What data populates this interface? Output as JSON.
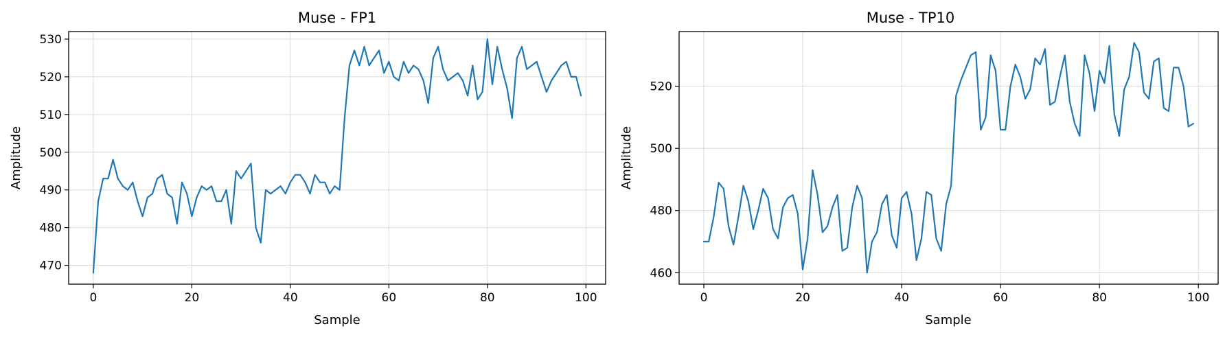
{
  "colors": {
    "series": "#1f77b4",
    "grid": "#d9d9d9",
    "background": "#ffffff"
  },
  "chart_data": [
    {
      "type": "line",
      "title": "Muse - FP1",
      "xlabel": "Sample",
      "ylabel": "Amplitude",
      "xlim": [
        -5,
        104
      ],
      "ylim": [
        465,
        532
      ],
      "xticks": [
        0,
        20,
        40,
        60,
        80,
        100
      ],
      "yticks": [
        470,
        480,
        490,
        500,
        510,
        520,
        530
      ],
      "grid": true,
      "series": [
        {
          "x": [
            0,
            1,
            2,
            3,
            4,
            5,
            6,
            7,
            8,
            9,
            10,
            11,
            12,
            13,
            14,
            15,
            16,
            17,
            18,
            19,
            20,
            21,
            22,
            23,
            24,
            25,
            26,
            27,
            28,
            29,
            30,
            31,
            32,
            33,
            34,
            35,
            36,
            37,
            38,
            39,
            40,
            41,
            42,
            43,
            44,
            45,
            46,
            47,
            48,
            49,
            50,
            51,
            52,
            53,
            54,
            55,
            56,
            57,
            58,
            59,
            60,
            61,
            62,
            63,
            64,
            65,
            66,
            67,
            68,
            69,
            70,
            71,
            72,
            73,
            74,
            75,
            76,
            77,
            78,
            79,
            80,
            81,
            82,
            83,
            84,
            85,
            86,
            87,
            88,
            89,
            90,
            91,
            92,
            93,
            94,
            95,
            96,
            97,
            98,
            99
          ],
          "values": [
            468,
            487,
            493,
            493,
            498,
            493,
            491,
            490,
            492,
            487,
            483,
            488,
            489,
            493,
            494,
            489,
            488,
            481,
            492,
            489,
            483,
            488,
            491,
            490,
            491,
            487,
            487,
            490,
            481,
            495,
            493,
            495,
            497,
            480,
            476,
            490,
            489,
            490,
            491,
            489,
            492,
            494,
            494,
            492,
            489,
            494,
            492,
            492,
            489,
            491,
            490,
            509,
            523,
            527,
            523,
            528,
            523,
            525,
            527,
            521,
            524,
            520,
            519,
            524,
            521,
            523,
            522,
            519,
            513,
            525,
            528,
            522,
            519,
            520,
            521,
            519,
            515,
            523,
            514,
            516,
            530,
            518,
            528,
            522,
            517,
            509,
            525,
            528,
            522,
            523,
            524,
            520,
            516,
            519,
            521,
            523,
            524,
            520,
            520,
            515
          ]
        }
      ]
    },
    {
      "type": "line",
      "title": "Muse - TP10",
      "xlabel": "Sample",
      "ylabel": "Amplitude",
      "xlim": [
        -5,
        104
      ],
      "ylim": [
        456.3,
        537.6
      ],
      "xticks": [
        0,
        20,
        40,
        60,
        80,
        100
      ],
      "yticks": [
        460,
        480,
        500,
        520
      ],
      "grid": true,
      "series": [
        {
          "x": [
            0,
            1,
            2,
            3,
            4,
            5,
            6,
            7,
            8,
            9,
            10,
            11,
            12,
            13,
            14,
            15,
            16,
            17,
            18,
            19,
            20,
            21,
            22,
            23,
            24,
            25,
            26,
            27,
            28,
            29,
            30,
            31,
            32,
            33,
            34,
            35,
            36,
            37,
            38,
            39,
            40,
            41,
            42,
            43,
            44,
            45,
            46,
            47,
            48,
            49,
            50,
            51,
            52,
            53,
            54,
            55,
            56,
            57,
            58,
            59,
            60,
            61,
            62,
            63,
            64,
            65,
            66,
            67,
            68,
            69,
            70,
            71,
            72,
            73,
            74,
            75,
            76,
            77,
            78,
            79,
            80,
            81,
            82,
            83,
            84,
            85,
            86,
            87,
            88,
            89,
            90,
            91,
            92,
            93,
            94,
            95,
            96,
            97,
            98,
            99
          ],
          "values": [
            470,
            470,
            478,
            489,
            487,
            475,
            469,
            478,
            488,
            483,
            474,
            480,
            487,
            484,
            474,
            471,
            481,
            484,
            485,
            479,
            461,
            471,
            493,
            485,
            473,
            475,
            481,
            485,
            467,
            468,
            481,
            488,
            484,
            460,
            470,
            473,
            482,
            485,
            472,
            468,
            484,
            486,
            479,
            464,
            471,
            486,
            485,
            471,
            467,
            482,
            488,
            517,
            522,
            526,
            530,
            531,
            506,
            510,
            530,
            525,
            506,
            506,
            520,
            527,
            523,
            516,
            519,
            529,
            527,
            532,
            514,
            515,
            523,
            530,
            515,
            508,
            504,
            530,
            524,
            512,
            525,
            521,
            533,
            511,
            504,
            519,
            523,
            534,
            531,
            518,
            516,
            528,
            529,
            513,
            512,
            526,
            526,
            520,
            507,
            508
          ]
        }
      ]
    }
  ]
}
